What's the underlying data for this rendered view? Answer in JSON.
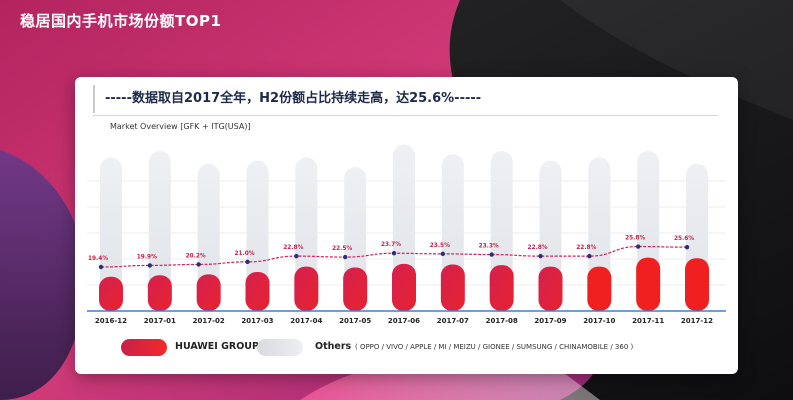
{
  "slide": {
    "title": "稳居国内手机市场份额TOP1"
  },
  "card": {
    "headline": "-----数据取自2017全年，H2份额占比持续走高，达25.6%-----",
    "subtitle": "Market Overview [GFK + ITG(USA)]"
  },
  "colors": {
    "huawei": "#e8232f",
    "others": "#e4e6ea",
    "line": "#d61f5c",
    "axis": "#3b7fd6"
  },
  "legend": {
    "huawei_label": "HUAWEI GROUP",
    "others_label": "Others",
    "others_detail": "( OPPO / VIVO / APPLE / MI / MEIZU / GIONEE / SUMSUNG / CHINAMOBILE / 360 )"
  },
  "chart_data": {
    "type": "bar",
    "categories": [
      "2016-12",
      "2017-01",
      "2017-02",
      "2017-03",
      "2017-04",
      "2017-05",
      "2017-06",
      "2017-07",
      "2017-08",
      "2017-09",
      "2017-10",
      "2017-11",
      "2017-12"
    ],
    "series": [
      {
        "name": "HUAWEI GROUP",
        "values": [
          19.4,
          19.9,
          20.2,
          21.0,
          22.8,
          22.5,
          23.7,
          23.5,
          23.3,
          22.8,
          22.8,
          25.8,
          25.6
        ]
      },
      {
        "name": "Others",
        "values": [
          80.6,
          80.1,
          79.8,
          79.0,
          77.2,
          77.5,
          76.3,
          76.5,
          76.7,
          77.2,
          77.2,
          74.2,
          74.4
        ]
      }
    ],
    "data_labels": [
      "19.4%",
      "19.9%",
      "20.2%",
      "21.0%",
      "22.8%",
      "22.5%",
      "23.7%",
      "23.5%",
      "23.3%",
      "22.8%",
      "22.8%",
      "25.8%",
      "25.6%"
    ],
    "total_bar_index": [
      96,
      100,
      92,
      94,
      96,
      90,
      104,
      98,
      100,
      94,
      96,
      100,
      92
    ],
    "grid": true,
    "legend_position": "bottom"
  }
}
